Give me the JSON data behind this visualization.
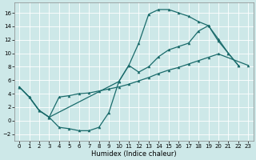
{
  "xlabel": "Humidex (Indice chaleur)",
  "bg_color": "#cde8e8",
  "line_color": "#1a6b6b",
  "grid_color": "#ffffff",
  "xlim": [
    -0.5,
    23.5
  ],
  "ylim": [
    -3,
    17.5
  ],
  "xticks": [
    0,
    1,
    2,
    3,
    4,
    5,
    6,
    7,
    8,
    9,
    10,
    11,
    12,
    13,
    14,
    15,
    16,
    17,
    18,
    19,
    20,
    21,
    22,
    23
  ],
  "yticks": [
    -2,
    0,
    2,
    4,
    6,
    8,
    10,
    12,
    14,
    16
  ],
  "line1_x": [
    0,
    1,
    2,
    3,
    4,
    5,
    6,
    7,
    8,
    9,
    10,
    11,
    12,
    13,
    14,
    15,
    16,
    17,
    18,
    19,
    20,
    21,
    22
  ],
  "line1_y": [
    5.0,
    3.5,
    1.5,
    0.5,
    -1.0,
    -1.2,
    -1.5,
    -1.5,
    -1.0,
    1.2,
    5.8,
    8.2,
    11.5,
    15.8,
    16.5,
    16.5,
    16.0,
    15.5,
    14.7,
    14.1,
    11.8,
    10.0,
    8.2
  ],
  "line2_x": [
    0,
    1,
    2,
    3,
    10,
    11,
    12,
    13,
    14,
    15,
    16,
    17,
    18,
    19,
    20,
    21,
    22
  ],
  "line2_y": [
    5.0,
    3.5,
    1.5,
    0.5,
    5.8,
    8.2,
    7.2,
    8.0,
    9.5,
    10.5,
    11.0,
    11.5,
    13.3,
    14.1,
    12.1,
    10.0,
    8.2
  ],
  "line3_x": [
    0,
    1,
    2,
    3,
    4,
    5,
    6,
    7,
    8,
    9,
    10,
    11,
    12,
    13,
    14,
    15,
    16,
    17,
    18,
    19,
    20,
    23
  ],
  "line3_y": [
    5.0,
    3.5,
    1.5,
    0.5,
    3.5,
    3.7,
    4.0,
    4.1,
    4.4,
    4.7,
    5.0,
    5.4,
    5.9,
    6.4,
    7.0,
    7.5,
    7.9,
    8.4,
    8.9,
    9.4,
    9.9,
    8.2
  ],
  "tick_fontsize": 5.0,
  "xlabel_fontsize": 6.0,
  "lw": 0.9,
  "ms": 2.2
}
